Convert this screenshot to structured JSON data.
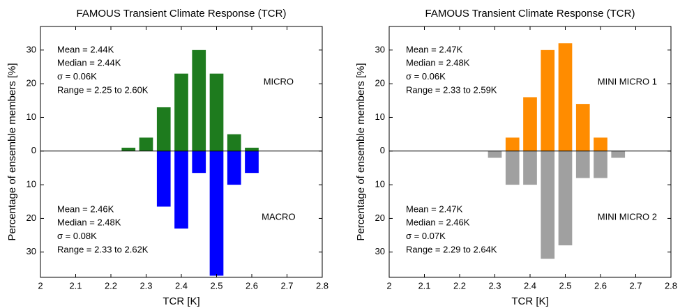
{
  "chart_data": [
    {
      "type": "bar",
      "title": "FAMOUS Transient Climate Response (TCR)",
      "x_label": "TCR [K]",
      "y_label": "Percentage of ensemble members [%]",
      "x": [
        2.25,
        2.3,
        2.35,
        2.4,
        2.45,
        2.5,
        2.55,
        2.6
      ],
      "series": [
        {
          "name": "MICRO",
          "color": "#1e7b1e",
          "values": [
            1,
            4,
            13,
            23,
            30,
            23,
            5,
            1
          ],
          "stats": [
            "Mean = 2.44K",
            "Median = 2.44K",
            "σ = 0.06K",
            "Range = 2.25 to 2.60K"
          ]
        },
        {
          "name": "MACRO",
          "color": "#0000ff",
          "values": [
            null,
            null,
            -16.5,
            -23,
            -6.5,
            -37,
            -10,
            -6.5
          ],
          "stats": [
            "Mean = 2.46K",
            "Median = 2.48K",
            "σ = 0.08K",
            "Range = 2.33 to 2.62K"
          ]
        }
      ],
      "xlim": [
        2,
        2.8
      ],
      "xticks": [
        2,
        2.1,
        2.2,
        2.3,
        2.4,
        2.5,
        2.6,
        2.7,
        2.8
      ],
      "ylim": [
        -37.5,
        37
      ],
      "yticks": [
        {
          "value": -30,
          "label": "30"
        },
        {
          "value": -20,
          "label": "20"
        },
        {
          "value": -10,
          "label": "10"
        },
        0,
        10,
        20,
        30
      ]
    },
    {
      "type": "bar",
      "title": "FAMOUS Transient Climate Response (TCR)",
      "x_label": "TCR [K]",
      "y_label": "Percentage of ensemble members [%]",
      "x": [
        2.3,
        2.35,
        2.4,
        2.45,
        2.5,
        2.55,
        2.6,
        2.65
      ],
      "series": [
        {
          "name": "MINI MICRO 1",
          "color": "#ff8c00",
          "values": [
            null,
            4,
            16,
            30,
            32,
            14,
            4,
            null
          ],
          "stats": [
            "Mean = 2.47K",
            "Median = 2.48K",
            "σ = 0.06K",
            "Range = 2.33 to 2.59K"
          ]
        },
        {
          "name": "MINI MICRO 2",
          "color": "#a0a0a0",
          "values": [
            -2,
            -10,
            -10,
            -32,
            -28,
            -8,
            -8,
            -2
          ],
          "stats": [
            "Mean = 2.47K",
            "Median = 2.46K",
            "σ = 0.07K",
            "Range = 2.29 to 2.64K"
          ]
        }
      ],
      "xlim": [
        2,
        2.8
      ],
      "xticks": [
        2,
        2.1,
        2.2,
        2.3,
        2.4,
        2.5,
        2.6,
        2.7,
        2.8
      ],
      "ylim": [
        -37.5,
        37
      ],
      "yticks": [
        {
          "value": -30,
          "label": "30"
        },
        {
          "value": -20,
          "label": "20"
        },
        {
          "value": -10,
          "label": "10"
        },
        0,
        10,
        20,
        30
      ]
    }
  ]
}
